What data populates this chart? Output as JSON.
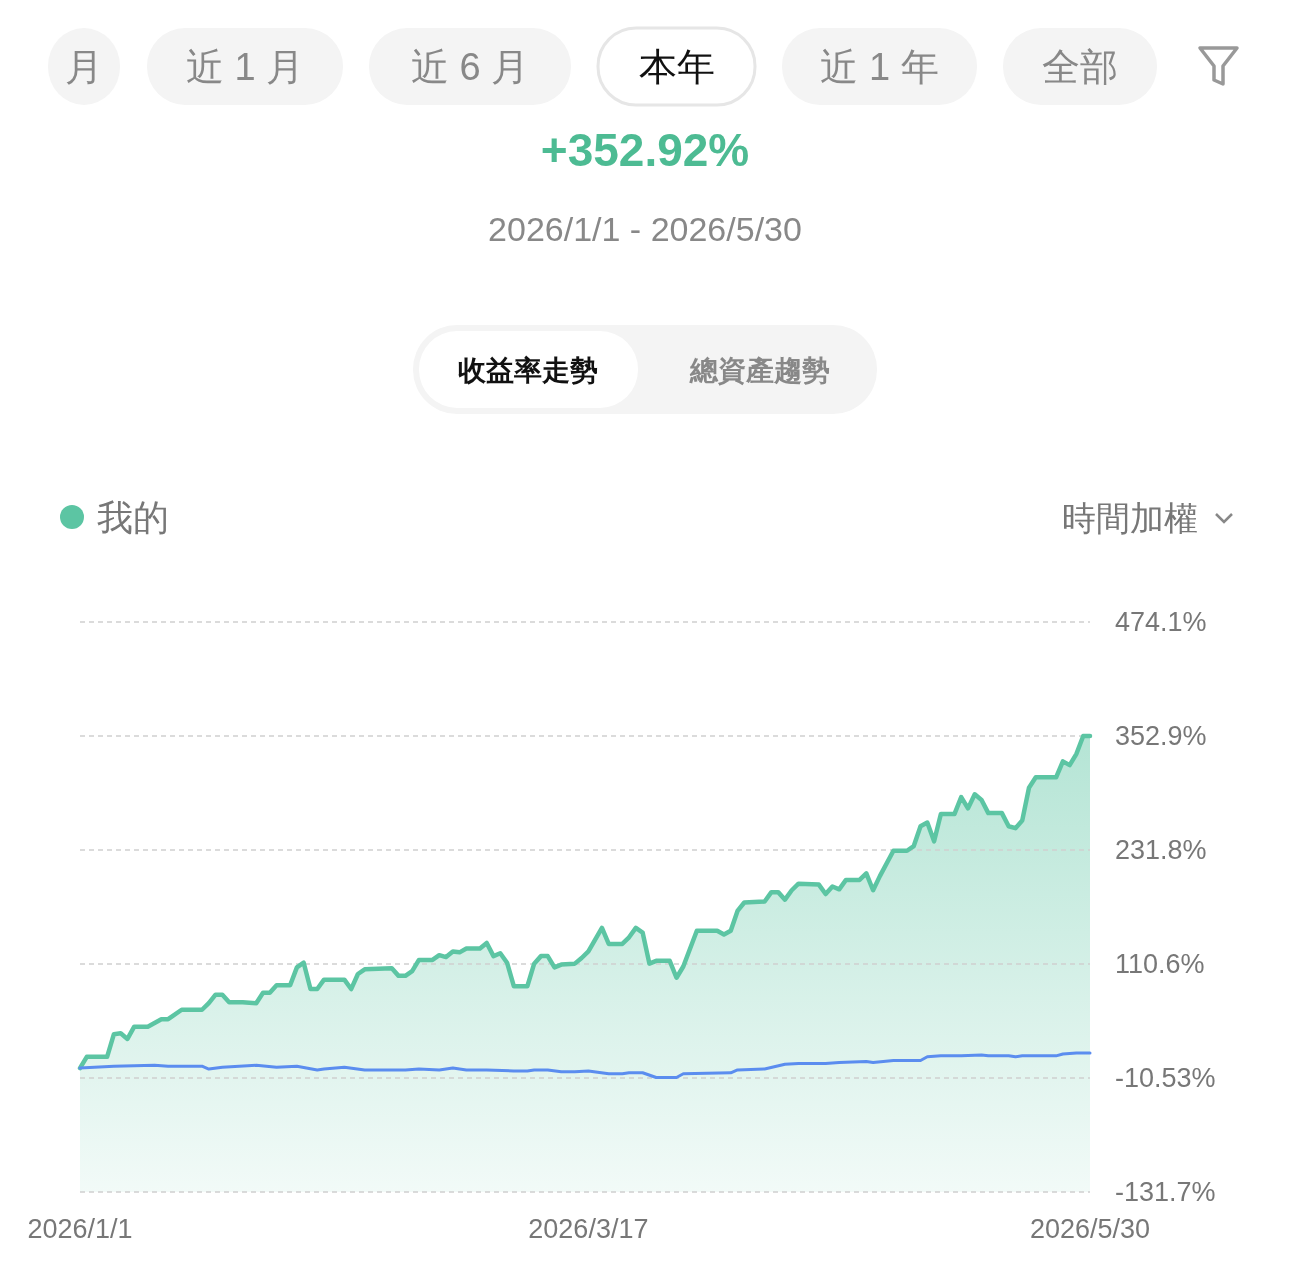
{
  "chart_data": {
    "type": "area",
    "title": "+352.92%",
    "subtitle": "2026/1/1 - 2026/5/30",
    "annotations": [
      "月",
      "近 1 月",
      "近 6 月",
      "本年",
      "近 1 年",
      "全部",
      "收益率走勢",
      "總資產趨勢",
      "時間加權"
    ],
    "xlim": [
      "2026-01-01",
      "2026-05-30"
    ],
    "xticks": [
      {
        "value": "2026-01-01",
        "label": "2026/1/1"
      },
      {
        "value": "2026-03-17",
        "label": "2026/3/17"
      },
      {
        "value": "2026-05-30",
        "label": "2026/5/30"
      }
    ],
    "ylim": [
      -131.7,
      474.1
    ],
    "yticks": [
      {
        "value": -131.7,
        "label": "-131.7%"
      },
      {
        "value": -10.53,
        "label": "-10.53%"
      },
      {
        "value": 110.6,
        "label": "110.6%"
      },
      {
        "value": 231.8,
        "label": "231.8%"
      },
      {
        "value": 352.9,
        "label": "352.9%"
      },
      {
        "value": 474.1,
        "label": "474.1%"
      }
    ],
    "grid": "y",
    "legend": "top left",
    "series": [
      {
        "name": "我的",
        "color": "#5cc5a3",
        "x": [
          "2026-01-01",
          "2026-01-02",
          "2026-01-05",
          "2026-01-06",
          "2026-01-07",
          "2026-01-08",
          "2026-01-09",
          "2026-01-11",
          "2026-01-13",
          "2026-01-14",
          "2026-01-16",
          "2026-01-19",
          "2026-01-20",
          "2026-01-21",
          "2026-01-22",
          "2026-01-23",
          "2026-01-25",
          "2026-01-27",
          "2026-01-28",
          "2026-01-29",
          "2026-01-30",
          "2026-02-01",
          "2026-02-02",
          "2026-02-03",
          "2026-02-04",
          "2026-02-05",
          "2026-02-06",
          "2026-02-09",
          "2026-02-10",
          "2026-02-11",
          "2026-02-12",
          "2026-02-16",
          "2026-02-17",
          "2026-02-18",
          "2026-02-19",
          "2026-02-20",
          "2026-02-22",
          "2026-02-23",
          "2026-02-24",
          "2026-02-25",
          "2026-02-26",
          "2026-02-27",
          "2026-03-01",
          "2026-03-02",
          "2026-03-03",
          "2026-03-04",
          "2026-03-05",
          "2026-03-06",
          "2026-03-08",
          "2026-03-09",
          "2026-03-10",
          "2026-03-11",
          "2026-03-12",
          "2026-03-13",
          "2026-03-15",
          "2026-03-16",
          "2026-03-17",
          "2026-03-19",
          "2026-03-20",
          "2026-03-22",
          "2026-03-23",
          "2026-03-24",
          "2026-03-25",
          "2026-03-26",
          "2026-03-27",
          "2026-03-29",
          "2026-03-30",
          "2026-03-31",
          "2026-04-02",
          "2026-04-05",
          "2026-04-06",
          "2026-04-07",
          "2026-04-08",
          "2026-04-09",
          "2026-04-12",
          "2026-04-13",
          "2026-04-14",
          "2026-04-15",
          "2026-04-16",
          "2026-04-17",
          "2026-04-20",
          "2026-04-21",
          "2026-04-22",
          "2026-04-23",
          "2026-04-24",
          "2026-04-26",
          "2026-04-27",
          "2026-04-28",
          "2026-04-29",
          "2026-05-01",
          "2026-05-03",
          "2026-05-04",
          "2026-05-05",
          "2026-05-06",
          "2026-05-07",
          "2026-05-08",
          "2026-05-10",
          "2026-05-11",
          "2026-05-12",
          "2026-05-13",
          "2026-05-14",
          "2026-05-15",
          "2026-05-17",
          "2026-05-18",
          "2026-05-19",
          "2026-05-20",
          "2026-05-21",
          "2026-05-22",
          "2026-05-25",
          "2026-05-26",
          "2026-05-27",
          "2026-05-28",
          "2026-05-29",
          "2026-05-30"
        ],
        "values": [
          0,
          12,
          12,
          36,
          37,
          31,
          44,
          44,
          52,
          52,
          62,
          62,
          69,
          78,
          78,
          70,
          70,
          69,
          80,
          80,
          88,
          88,
          107,
          112,
          84,
          84,
          94,
          94,
          84,
          100,
          105,
          106,
          98,
          98,
          103,
          115,
          115,
          120,
          118,
          124,
          123,
          127,
          127,
          133,
          119,
          122,
          112,
          87,
          87,
          111,
          119,
          119,
          107,
          110,
          111,
          117,
          124,
          149,
          132,
          132,
          139,
          149,
          144,
          111,
          114,
          114,
          96,
          108,
          146,
          146,
          142,
          146,
          167,
          176,
          177,
          187,
          187,
          179,
          189,
          196,
          195,
          185,
          193,
          190,
          200,
          200,
          207,
          189,
          204,
          231,
          231,
          236,
          257,
          261,
          241,
          270,
          270,
          288,
          276,
          291,
          285,
          271,
          271,
          257,
          255,
          263,
          298,
          309,
          309,
          326,
          322,
          334,
          353,
          353
        ]
      },
      {
        "type": "line",
        "color": "#5b8def",
        "x": [
          "2026-01-01",
          "2026-01-06",
          "2026-01-12",
          "2026-01-14",
          "2026-01-19",
          "2026-01-20",
          "2026-01-22",
          "2026-01-27",
          "2026-01-30",
          "2026-02-02",
          "2026-02-05",
          "2026-02-06",
          "2026-02-09",
          "2026-02-12",
          "2026-02-18",
          "2026-02-20",
          "2026-02-23",
          "2026-02-25",
          "2026-02-27",
          "2026-03-02",
          "2026-03-06",
          "2026-03-08",
          "2026-03-09",
          "2026-03-11",
          "2026-03-13",
          "2026-03-15",
          "2026-03-17",
          "2026-03-20",
          "2026-03-22",
          "2026-03-23",
          "2026-03-25",
          "2026-03-27",
          "2026-03-30",
          "2026-03-31",
          "2026-04-07",
          "2026-04-08",
          "2026-04-12",
          "2026-04-15",
          "2026-04-17",
          "2026-04-21",
          "2026-04-23",
          "2026-04-27",
          "2026-04-28",
          "2026-05-01",
          "2026-05-05",
          "2026-05-06",
          "2026-05-08",
          "2026-05-11",
          "2026-05-14",
          "2026-05-15",
          "2026-05-18",
          "2026-05-19",
          "2026-05-20",
          "2026-05-25",
          "2026-05-26",
          "2026-05-28",
          "2026-05-30"
        ],
        "values": [
          0,
          2,
          3,
          2,
          2,
          -1,
          1,
          3,
          1,
          2,
          -2,
          -1,
          1,
          -2,
          -2,
          -1,
          -2,
          0,
          -2,
          -2,
          -3,
          -3,
          -2,
          -2,
          -4,
          -4,
          -3,
          -6,
          -6,
          -5,
          -5,
          -10,
          -10,
          -6,
          -5,
          -2,
          -1,
          4,
          5,
          5,
          6,
          7,
          6,
          8,
          8,
          12,
          13,
          13,
          14,
          13,
          13,
          12,
          13,
          13,
          15,
          16,
          16
        ]
      }
    ]
  }
}
